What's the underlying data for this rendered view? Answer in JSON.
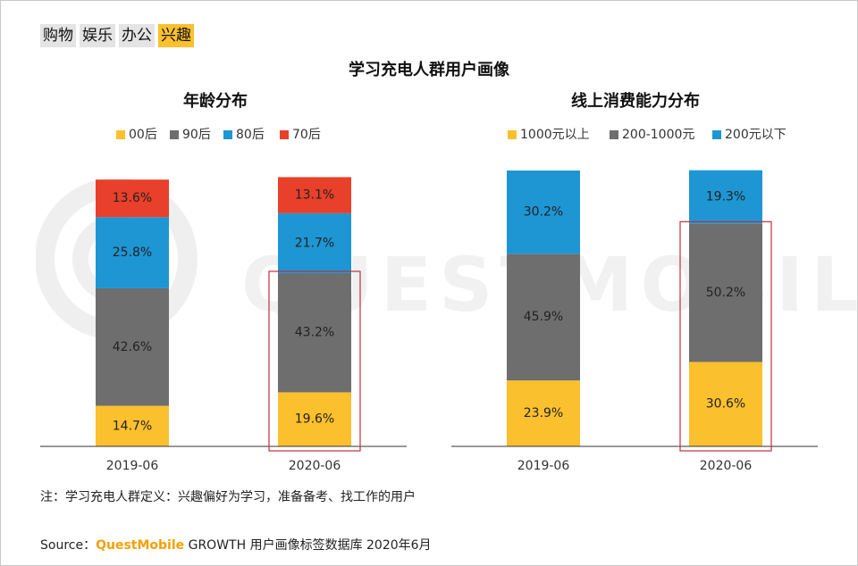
{
  "tabs": [
    {
      "label": "购物",
      "active": false
    },
    {
      "label": "娱乐",
      "active": false
    },
    {
      "label": "办公",
      "active": false
    },
    {
      "label": "兴趣",
      "active": true
    }
  ],
  "main_title": "学习充电人群用户画像",
  "watermark": "QUESTMOBILE",
  "colors": {
    "yellow": "#fbc02d",
    "gray": "#6e6e6e",
    "blue": "#1e96d4",
    "red": "#e8402a",
    "highlight": "#c0303a"
  },
  "chart_data": [
    {
      "type": "bar",
      "stacked": true,
      "normalized": true,
      "title": "年龄分布",
      "categories": [
        "2019-06",
        "2020-06"
      ],
      "series": [
        {
          "name": "00后",
          "color": "#fbc02d",
          "values": [
            14.7,
            19.6
          ],
          "labels": [
            "14.7%",
            "19.6%"
          ]
        },
        {
          "name": "90后",
          "color": "#6e6e6e",
          "values": [
            42.6,
            43.2
          ],
          "labels": [
            "42.6%",
            "43.2%"
          ]
        },
        {
          "name": "80后",
          "color": "#1e96d4",
          "values": [
            25.8,
            21.7
          ],
          "labels": [
            "25.8%",
            "21.7%"
          ]
        },
        {
          "name": "70后",
          "color": "#e8402a",
          "values": [
            13.6,
            13.1
          ],
          "labels": [
            "13.6%",
            "13.1%"
          ]
        }
      ],
      "legend_position": "top-center",
      "highlight": {
        "category": "2020-06",
        "series": [
          "00后",
          "90后"
        ]
      }
    },
    {
      "type": "bar",
      "stacked": true,
      "normalized": true,
      "title": "线上消费能力分布",
      "categories": [
        "2019-06",
        "2020-06"
      ],
      "series": [
        {
          "name": "1000元以上",
          "color": "#fbc02d",
          "values": [
            23.9,
            30.6
          ],
          "labels": [
            "23.9%",
            "30.6%"
          ]
        },
        {
          "name": "200-1000元",
          "color": "#6e6e6e",
          "values": [
            45.9,
            50.2
          ],
          "labels": [
            "45.9%",
            "50.2%"
          ]
        },
        {
          "name": "200元以下",
          "color": "#1e96d4",
          "values": [
            30.2,
            19.3
          ],
          "labels": [
            "30.2%",
            "19.3%"
          ]
        }
      ],
      "legend_position": "top-center",
      "highlight": {
        "category": "2020-06",
        "series": [
          "1000元以上",
          "200-1000元"
        ]
      }
    }
  ],
  "note": "注：学习充电人群定义：兴趣偏好为学习，准备备考、找工作的用户",
  "source": {
    "prefix": "Source：",
    "brand": "QuestMobile",
    "suffix": " GROWTH 用户画像标签数据库 2020年6月"
  }
}
